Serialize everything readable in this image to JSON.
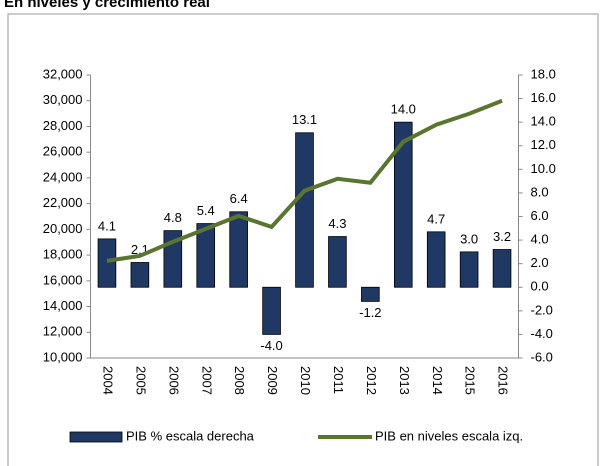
{
  "chart_data": {
    "type": "bar",
    "title": "En niveles y crecimiento real",
    "categories": [
      "2004",
      "2005",
      "2006",
      "2007",
      "2008",
      "2009",
      "2010",
      "2011",
      "2012",
      "2013",
      "2014",
      "2015",
      "2016"
    ],
    "series": [
      {
        "name": "PIB % escala derecha",
        "type": "bar",
        "axis": "y2",
        "color": "#1f3864",
        "values": [
          4.1,
          2.1,
          4.8,
          5.4,
          6.4,
          -4.0,
          13.1,
          4.3,
          -1.2,
          14.0,
          4.7,
          3.0,
          3.2
        ],
        "value_labels": [
          "4.1",
          "2.1",
          "4.8",
          "5.4",
          "6.4",
          "-4.0",
          "13.1",
          "4.3",
          "-1.2",
          "14.0",
          "4.7",
          "3.0",
          "3.2"
        ]
      },
      {
        "name": "PIB en niveles escala izq.",
        "type": "line",
        "axis": "y",
        "color": "#5a7530",
        "values": [
          17550,
          17940,
          19030,
          20040,
          21050,
          20190,
          23000,
          23930,
          23620,
          26810,
          28130,
          28990,
          30000
        ]
      }
    ],
    "ylim": [
      10000,
      32000
    ],
    "yticks": [
      {
        "value": 10000,
        "label": "10,000"
      },
      {
        "value": 12000,
        "label": "12,000"
      },
      {
        "value": 14000,
        "label": "14,000"
      },
      {
        "value": 16000,
        "label": "16,000"
      },
      {
        "value": 18000,
        "label": "18,000"
      },
      {
        "value": 20000,
        "label": "20,000"
      },
      {
        "value": 22000,
        "label": "22,000"
      },
      {
        "value": 24000,
        "label": "24,000"
      },
      {
        "value": 26000,
        "label": "26,000"
      },
      {
        "value": 28000,
        "label": "28,000"
      },
      {
        "value": 30000,
        "label": "30,000"
      },
      {
        "value": 32000,
        "label": "32,000"
      }
    ],
    "y2lim": [
      -6,
      18
    ],
    "y2ticks": [
      {
        "value": -6,
        "label": "-6.0"
      },
      {
        "value": -4,
        "label": "-4.0"
      },
      {
        "value": -2,
        "label": "-2.0"
      },
      {
        "value": 0,
        "label": "0.0"
      },
      {
        "value": 2,
        "label": "2.0"
      },
      {
        "value": 4,
        "label": "4.0"
      },
      {
        "value": 6,
        "label": "6.0"
      },
      {
        "value": 8,
        "label": "8.0"
      },
      {
        "value": 10,
        "label": "10.0"
      },
      {
        "value": 12,
        "label": "12.0"
      },
      {
        "value": 14,
        "label": "14.0"
      },
      {
        "value": 16,
        "label": "16.0"
      },
      {
        "value": 18,
        "label": "18.0"
      }
    ],
    "legend": "bottom"
  }
}
